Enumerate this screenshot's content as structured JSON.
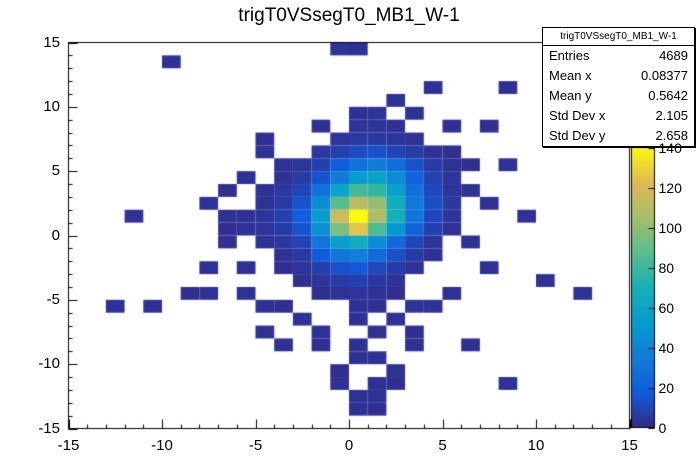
{
  "title": "trigT0VSsegT0_MB1_W-1",
  "stats_box": {
    "header": "trigT0VSsegT0_MB1_W-1",
    "rows": [
      {
        "label": "Entries",
        "value": "4689"
      },
      {
        "label": "Mean x",
        "value": "0.08377"
      },
      {
        "label": "Mean y",
        "value": "0.5642"
      },
      {
        "label": "Std Dev x",
        "value": "2.105"
      },
      {
        "label": "Std Dev y",
        "value": "2.658"
      }
    ]
  },
  "chart_data": {
    "type": "heatmap",
    "title": "trigT0VSsegT0_MB1_W-1",
    "xlabel": "",
    "ylabel": "",
    "xlim": [
      -15,
      15
    ],
    "ylim": [
      -15,
      15
    ],
    "bin_width": 1,
    "bin_height": 1,
    "x_ticks": [
      -15,
      -10,
      -5,
      0,
      5,
      10,
      15
    ],
    "y_ticks": [
      -15,
      -10,
      -5,
      0,
      5,
      10,
      15
    ],
    "z_ticks": [
      0,
      20,
      40,
      60,
      80,
      100,
      120,
      140
    ],
    "z_max": 145,
    "grid": false,
    "legend_position": "right",
    "palette": [
      "#352a87",
      "#0f5cdd",
      "#127dd8",
      "#079ccf",
      "#15b1b4",
      "#59bd8c",
      "#a5be6b",
      "#e1b952",
      "#f8fa0d"
    ],
    "cells": [
      [
        0,
        14,
        3
      ],
      [
        -1,
        14,
        4
      ],
      [
        -10,
        13,
        3
      ],
      [
        8,
        11,
        3
      ],
      [
        4,
        11,
        3
      ],
      [
        2,
        10,
        3
      ],
      [
        0,
        9,
        3
      ],
      [
        1,
        9,
        4
      ],
      [
        3,
        9,
        3
      ],
      [
        -2,
        8,
        3
      ],
      [
        0,
        8,
        4
      ],
      [
        1,
        8,
        4
      ],
      [
        2,
        8,
        3
      ],
      [
        5,
        8,
        3
      ],
      [
        7,
        8,
        2
      ],
      [
        -5,
        7,
        2
      ],
      [
        -1,
        7,
        4
      ],
      [
        0,
        7,
        6
      ],
      [
        1,
        7,
        5
      ],
      [
        2,
        7,
        4
      ],
      [
        3,
        7,
        3
      ],
      [
        -5,
        6,
        3
      ],
      [
        -2,
        6,
        5
      ],
      [
        -1,
        6,
        8
      ],
      [
        0,
        6,
        12
      ],
      [
        1,
        6,
        14
      ],
      [
        2,
        6,
        10
      ],
      [
        3,
        6,
        6
      ],
      [
        4,
        6,
        3
      ],
      [
        5,
        6,
        2
      ],
      [
        -4,
        5,
        3
      ],
      [
        -3,
        5,
        4
      ],
      [
        -2,
        5,
        8
      ],
      [
        -1,
        5,
        20
      ],
      [
        0,
        5,
        30
      ],
      [
        1,
        5,
        35
      ],
      [
        2,
        5,
        28
      ],
      [
        3,
        5,
        14
      ],
      [
        4,
        5,
        6
      ],
      [
        5,
        5,
        3
      ],
      [
        6,
        5,
        2
      ],
      [
        8,
        5,
        3
      ],
      [
        -6,
        4,
        3
      ],
      [
        -4,
        4,
        3
      ],
      [
        -3,
        4,
        6
      ],
      [
        -2,
        4,
        15
      ],
      [
        -1,
        4,
        35
      ],
      [
        0,
        4,
        55
      ],
      [
        1,
        4,
        60
      ],
      [
        2,
        4,
        45
      ],
      [
        3,
        4,
        22
      ],
      [
        4,
        4,
        9
      ],
      [
        5,
        4,
        4
      ],
      [
        -7,
        3,
        2
      ],
      [
        -5,
        3,
        3
      ],
      [
        -4,
        3,
        5
      ],
      [
        -3,
        3,
        10
      ],
      [
        -2,
        3,
        30
      ],
      [
        -1,
        3,
        60
      ],
      [
        0,
        3,
        85
      ],
      [
        1,
        3,
        80
      ],
      [
        2,
        3,
        58
      ],
      [
        3,
        3,
        28
      ],
      [
        4,
        3,
        11
      ],
      [
        5,
        3,
        4
      ],
      [
        6,
        3,
        3
      ],
      [
        -8,
        2,
        3
      ],
      [
        -5,
        2,
        3
      ],
      [
        -4,
        2,
        6
      ],
      [
        -3,
        2,
        15
      ],
      [
        -2,
        2,
        45
      ],
      [
        -1,
        2,
        90
      ],
      [
        0,
        2,
        115
      ],
      [
        1,
        2,
        105
      ],
      [
        2,
        2,
        68
      ],
      [
        3,
        2,
        33
      ],
      [
        4,
        2,
        13
      ],
      [
        5,
        2,
        5
      ],
      [
        7,
        2,
        3
      ],
      [
        -12,
        1,
        3
      ],
      [
        -7,
        1,
        3
      ],
      [
        -6,
        1,
        3
      ],
      [
        -5,
        1,
        4
      ],
      [
        -4,
        1,
        8
      ],
      [
        -3,
        1,
        20
      ],
      [
        -2,
        1,
        55
      ],
      [
        -1,
        1,
        120
      ],
      [
        0,
        1,
        145
      ],
      [
        1,
        1,
        112
      ],
      [
        2,
        1,
        72
      ],
      [
        3,
        1,
        32
      ],
      [
        4,
        1,
        11
      ],
      [
        5,
        1,
        4
      ],
      [
        9,
        1,
        3
      ],
      [
        -7,
        0,
        2
      ],
      [
        -6,
        0,
        3
      ],
      [
        -5,
        0,
        4
      ],
      [
        -4,
        0,
        7
      ],
      [
        -3,
        0,
        15
      ],
      [
        -2,
        0,
        48
      ],
      [
        -1,
        0,
        100
      ],
      [
        0,
        0,
        130
      ],
      [
        1,
        0,
        88
      ],
      [
        2,
        0,
        52
      ],
      [
        3,
        0,
        22
      ],
      [
        4,
        0,
        8
      ],
      [
        5,
        0,
        3
      ],
      [
        -7,
        -1,
        2
      ],
      [
        -5,
        -1,
        3
      ],
      [
        -4,
        -1,
        5
      ],
      [
        -3,
        -1,
        10
      ],
      [
        -2,
        -1,
        32
      ],
      [
        -1,
        -1,
        58
      ],
      [
        0,
        -1,
        68
      ],
      [
        1,
        -1,
        46
      ],
      [
        2,
        -1,
        26
      ],
      [
        3,
        -1,
        11
      ],
      [
        4,
        -1,
        4
      ],
      [
        6,
        -1,
        3
      ],
      [
        -4,
        -2,
        3
      ],
      [
        -3,
        -2,
        6
      ],
      [
        -2,
        -2,
        18
      ],
      [
        -1,
        -2,
        32
      ],
      [
        0,
        -2,
        38
      ],
      [
        1,
        -2,
        26
      ],
      [
        2,
        -2,
        14
      ],
      [
        3,
        -2,
        6
      ],
      [
        4,
        -2,
        3
      ],
      [
        -8,
        -3,
        3
      ],
      [
        -6,
        -3,
        3
      ],
      [
        -4,
        -3,
        2
      ],
      [
        -3,
        -3,
        4
      ],
      [
        -2,
        -3,
        8
      ],
      [
        -1,
        -3,
        14
      ],
      [
        0,
        -3,
        17
      ],
      [
        1,
        -3,
        11
      ],
      [
        2,
        -3,
        7
      ],
      [
        3,
        -3,
        3
      ],
      [
        7,
        -3,
        3
      ],
      [
        -3,
        -4,
        2
      ],
      [
        -2,
        -4,
        4
      ],
      [
        -1,
        -4,
        6
      ],
      [
        0,
        -4,
        8
      ],
      [
        1,
        -4,
        5
      ],
      [
        2,
        -4,
        3
      ],
      [
        10,
        -4,
        3
      ],
      [
        -9,
        -5,
        2
      ],
      [
        -8,
        -5,
        3
      ],
      [
        -6,
        -5,
        3
      ],
      [
        -2,
        -5,
        2
      ],
      [
        -1,
        -5,
        3
      ],
      [
        0,
        -5,
        4
      ],
      [
        1,
        -5,
        3
      ],
      [
        2,
        -5,
        2
      ],
      [
        5,
        -5,
        3
      ],
      [
        12,
        -5,
        3
      ],
      [
        -13,
        -6,
        3
      ],
      [
        -11,
        -6,
        3
      ],
      [
        -5,
        -6,
        3
      ],
      [
        -4,
        -6,
        2
      ],
      [
        0,
        -6,
        3
      ],
      [
        1,
        -6,
        3
      ],
      [
        3,
        -6,
        4
      ],
      [
        4,
        -6,
        3
      ],
      [
        -3,
        -7,
        3
      ],
      [
        0,
        -7,
        3
      ],
      [
        2,
        -7,
        3
      ],
      [
        -5,
        -8,
        3
      ],
      [
        -2,
        -8,
        3
      ],
      [
        1,
        -8,
        3
      ],
      [
        3,
        -8,
        2
      ],
      [
        -4,
        -9,
        3
      ],
      [
        -2,
        -9,
        2
      ],
      [
        0,
        -9,
        3
      ],
      [
        3,
        -9,
        3
      ],
      [
        6,
        -9,
        3
      ],
      [
        0,
        -10,
        3
      ],
      [
        1,
        -10,
        3
      ],
      [
        -1,
        -11,
        2
      ],
      [
        2,
        -11,
        3
      ],
      [
        -1,
        -12,
        3
      ],
      [
        1,
        -12,
        3
      ],
      [
        2,
        -12,
        2
      ],
      [
        8,
        -12,
        3
      ],
      [
        0,
        -13,
        3
      ],
      [
        1,
        -13,
        3
      ],
      [
        0,
        -14,
        3
      ],
      [
        1,
        -14,
        2
      ]
    ]
  }
}
